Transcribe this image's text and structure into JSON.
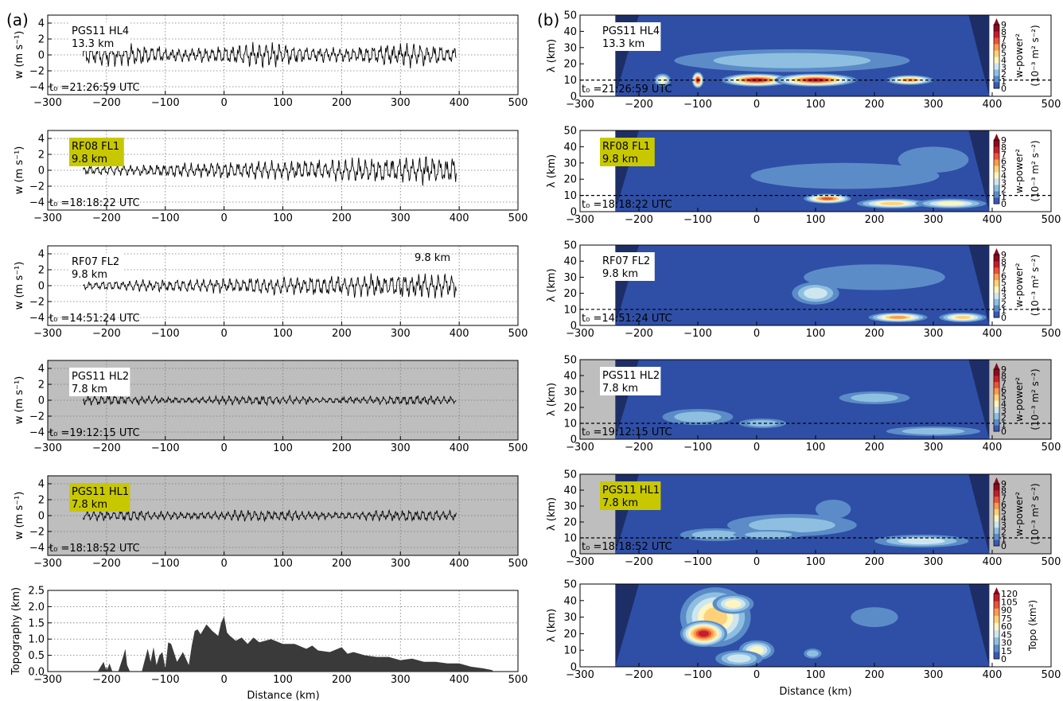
{
  "panel_labels": {
    "a": "(a)",
    "b": "(b)"
  },
  "shared_axes": {
    "xlabel": "Distance (km)",
    "x_ticks": [
      "−300",
      "−200",
      "−100",
      "0",
      "100",
      "200",
      "300",
      "400",
      "500"
    ],
    "w_ylabel": "w (m s⁻¹)",
    "w_y_ticks": [
      "4",
      "2",
      "0",
      "−2",
      "−4"
    ],
    "lambda_ylabel": "λ (km)",
    "lambda_y_ticks": [
      "50",
      "40",
      "30",
      "20",
      "10",
      "0"
    ],
    "topo_ylabel": "Topography (km)",
    "topo_y_ticks": [
      "2.5",
      "2.0",
      "1.5",
      "1.0",
      "0.5",
      "0.0"
    ],
    "wpower_colorbar_ticks": [
      "9",
      "8",
      "7",
      "6",
      "5",
      "4",
      "3",
      "2",
      "1",
      "0"
    ],
    "wpower_colorbar_label": "w-power²",
    "wpower_colorbar_unit": "(10⁻³ m² s⁻²)",
    "topo_colorbar_ticks": [
      "120",
      "105",
      "90",
      "75",
      "60",
      "45",
      "30",
      "15",
      "0"
    ],
    "topo_colorbar_label": "Topo (km²)"
  },
  "colors": {
    "shaded_bg": "#bebebe",
    "highlight_label": "#c8c800",
    "wavelet_bg": "#2f4fa6",
    "wavelet_cone": "#1c2a60",
    "topo_fill": "#3a3a3a"
  },
  "chart_data": [
    {
      "type": "line",
      "panel": "a",
      "row": 0,
      "name": "PGS11 HL4",
      "altitude": "13.3 km",
      "t0": "t₀ =21:26:59 UTC",
      "highlight": false,
      "shaded": false,
      "x_range": [
        -240,
        395
      ],
      "amplitude": 1.4,
      "xlim": [
        -300,
        500
      ],
      "ylim": [
        -5,
        5
      ]
    },
    {
      "type": "line",
      "panel": "a",
      "row": 1,
      "name": "RF08 FL1",
      "altitude": "9.8 km",
      "t0": "t₀ =18:18:22 UTC",
      "highlight": true,
      "shaded": false,
      "x_range": [
        -240,
        395
      ],
      "amplitude": 1.5,
      "xlim": [
        -300,
        500
      ],
      "ylim": [
        -5,
        5
      ]
    },
    {
      "type": "line",
      "panel": "a",
      "row": 2,
      "name": "RF07 FL2",
      "altitude": "9.8 km",
      "extra_label": "9.8 km",
      "t0": "t₀ =14:51:24 UTC",
      "highlight": false,
      "shaded": false,
      "x_range": [
        -240,
        395
      ],
      "amplitude": 1.4,
      "xlim": [
        -300,
        500
      ],
      "ylim": [
        -5,
        5
      ]
    },
    {
      "type": "line",
      "panel": "a",
      "row": 3,
      "name": "PGS11 HL2",
      "altitude": "7.8 km",
      "t0": "t₀ =19:12:15 UTC",
      "highlight": false,
      "shaded": true,
      "x_range": [
        -240,
        395
      ],
      "amplitude": 0.6,
      "xlim": [
        -300,
        500
      ],
      "ylim": [
        -5,
        5
      ]
    },
    {
      "type": "line",
      "panel": "a",
      "row": 4,
      "name": "PGS11 HL1",
      "altitude": "7.8 km",
      "t0": "t₀ =18:18:52 UTC",
      "highlight": true,
      "shaded": true,
      "x_range": [
        -240,
        395
      ],
      "amplitude": 0.7,
      "xlim": [
        -300,
        500
      ],
      "ylim": [
        -5,
        5
      ]
    },
    {
      "type": "area",
      "panel": "a",
      "row": 5,
      "name": "Topography",
      "xlim": [
        -300,
        500
      ],
      "ylim": [
        0,
        2.5
      ],
      "x": [
        -300,
        -250,
        -215,
        -205,
        -200,
        -195,
        -190,
        -180,
        -172,
        -168,
        -165,
        -160,
        -150,
        -140,
        -130,
        -125,
        -120,
        -115,
        -110,
        -105,
        -100,
        -95,
        -90,
        -80,
        -70,
        -60,
        -55,
        -50,
        -45,
        -40,
        -30,
        -20,
        -10,
        -5,
        0,
        5,
        10,
        20,
        30,
        40,
        50,
        60,
        70,
        80,
        100,
        120,
        140,
        150,
        160,
        180,
        200,
        210,
        220,
        240,
        260,
        280,
        300,
        320,
        340,
        360,
        380,
        400,
        420,
        440,
        455,
        460
      ],
      "y": [
        0,
        0,
        0,
        0.3,
        0,
        0.25,
        0,
        0,
        0.45,
        0.7,
        0.2,
        0,
        0,
        0,
        0.7,
        0.3,
        0.75,
        0.2,
        0.5,
        0.6,
        0.1,
        0.9,
        0.85,
        0.3,
        0.6,
        0.2,
        0.8,
        1.25,
        1.3,
        1.15,
        1.45,
        1.25,
        1.1,
        1.5,
        1.7,
        1.2,
        1.1,
        0.95,
        1.05,
        0.85,
        1.05,
        0.9,
        0.95,
        1.0,
        0.85,
        0.85,
        0.7,
        0.8,
        0.65,
        0.6,
        0.75,
        0.55,
        0.6,
        0.5,
        0.45,
        0.45,
        0.35,
        0.4,
        0.3,
        0.3,
        0.25,
        0.25,
        0.15,
        0.1,
        0.05,
        0
      ]
    },
    {
      "type": "heatmap",
      "panel": "b",
      "row": 0,
      "name": "PGS11 HL4",
      "altitude": "13.3 km",
      "t0": "t₀ =21:26:59 UTC",
      "highlight": false,
      "shaded": false,
      "xlim": [
        -300,
        500
      ],
      "ylim": [
        0,
        50
      ],
      "dashed_line_y": 10
    },
    {
      "type": "heatmap",
      "panel": "b",
      "row": 1,
      "name": "RF08 FL1",
      "altitude": "9.8 km",
      "t0": "t₀ =18:18:22 UTC",
      "highlight": true,
      "shaded": false,
      "xlim": [
        -300,
        500
      ],
      "ylim": [
        0,
        50
      ],
      "dashed_line_y": 10
    },
    {
      "type": "heatmap",
      "panel": "b",
      "row": 2,
      "name": "RF07 FL2",
      "altitude": "9.8 km",
      "t0": "t₀ =14:51:24 UTC",
      "highlight": false,
      "shaded": false,
      "xlim": [
        -300,
        500
      ],
      "ylim": [
        0,
        50
      ],
      "dashed_line_y": 10
    },
    {
      "type": "heatmap",
      "panel": "b",
      "row": 3,
      "name": "PGS11 HL2",
      "altitude": "7.8 km",
      "t0": "t₀ =19:12:15 UTC",
      "highlight": false,
      "shaded": true,
      "xlim": [
        -300,
        500
      ],
      "ylim": [
        0,
        50
      ],
      "dashed_line_y": 10
    },
    {
      "type": "heatmap",
      "panel": "b",
      "row": 4,
      "name": "PGS11 HL1",
      "altitude": "7.8 km",
      "t0": "t₀ =18:18:52 UTC",
      "highlight": true,
      "shaded": true,
      "xlim": [
        -300,
        500
      ],
      "ylim": [
        0,
        50
      ],
      "dashed_line_y": 10
    },
    {
      "type": "heatmap",
      "panel": "b",
      "row": 5,
      "name": "Topo",
      "xlim": [
        -300,
        500
      ],
      "ylim": [
        0,
        50
      ]
    }
  ]
}
